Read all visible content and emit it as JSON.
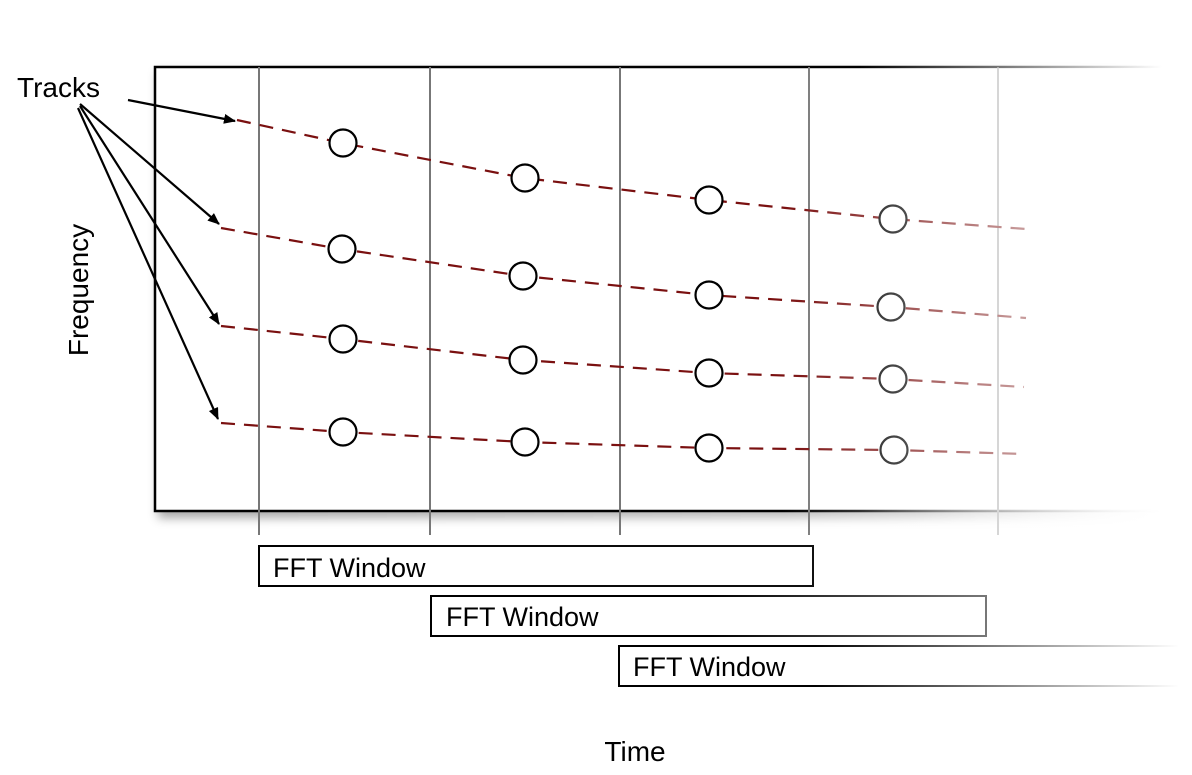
{
  "labels": {
    "tracks": "Tracks",
    "frequency": "Frequency",
    "time": "Time"
  },
  "windows": [
    {
      "label": "FFT Window"
    },
    {
      "label": "FFT Window"
    },
    {
      "label": "FFT Window"
    }
  ],
  "colors": {
    "track_line": "#7a1010",
    "frame_border": "#000000",
    "frame_divider": "#777777",
    "text": "#000000"
  },
  "track_count": 4,
  "frame_count": 5
}
